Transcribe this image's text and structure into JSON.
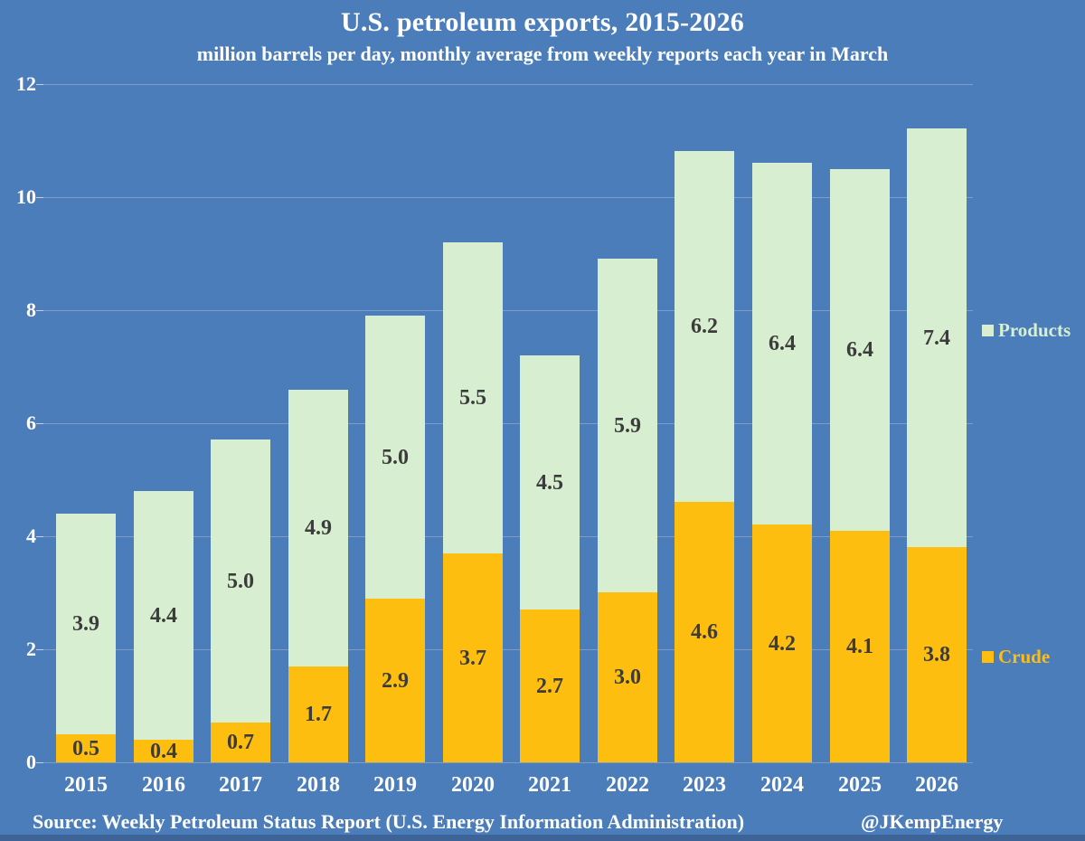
{
  "title": "U.S. petroleum exports, 2015-2026",
  "subtitle": "million barrels per day, monthly average from weekly reports each year in March",
  "legend": [
    {
      "label": "Products",
      "series": "Products"
    },
    {
      "label": "Crude",
      "series": "Crude"
    }
  ],
  "footer": {
    "source": "Source: Weekly Petroleum Status Report (U.S. Energy Information Administration)",
    "credit": "@JKempEnergy"
  },
  "colors": {
    "background": "#4C7DBB",
    "crude": "#FEBE10",
    "products": "#D7EFD0",
    "grid": "#90A7C9",
    "tick": "#BFCFE4",
    "value_label": "#3C3C3C",
    "light_text": "#FFFFFF",
    "bottom_edge": "#3E6397"
  },
  "chart_data": {
    "type": "bar",
    "stacked": true,
    "title": "U.S. petroleum exports, 2015-2026",
    "subtitle": "million barrels per day, monthly average from weekly reports each year in March",
    "categories": [
      "2015",
      "2016",
      "2017",
      "2018",
      "2019",
      "2020",
      "2021",
      "2022",
      "2023",
      "2024",
      "2025",
      "2026"
    ],
    "series": [
      {
        "name": "Crude",
        "values": [
          0.5,
          0.4,
          0.7,
          1.7,
          2.9,
          3.7,
          2.7,
          3.0,
          4.6,
          4.2,
          4.1,
          3.8
        ]
      },
      {
        "name": "Products",
        "values": [
          3.9,
          4.4,
          5.0,
          4.9,
          5.0,
          5.5,
          4.5,
          5.9,
          6.2,
          6.4,
          6.4,
          7.4
        ]
      }
    ],
    "totals": [
      4.4,
      4.8,
      5.7,
      6.6,
      7.9,
      9.2,
      7.2,
      8.9,
      10.8,
      10.6,
      10.5,
      11.2
    ],
    "value_label_format": "one_decimal",
    "xlabel": "",
    "ylabel": "",
    "ylim": [
      0,
      12
    ],
    "yticks": [
      0,
      2,
      4,
      6,
      8,
      10,
      12
    ],
    "grid": true,
    "legend_position": "right"
  }
}
